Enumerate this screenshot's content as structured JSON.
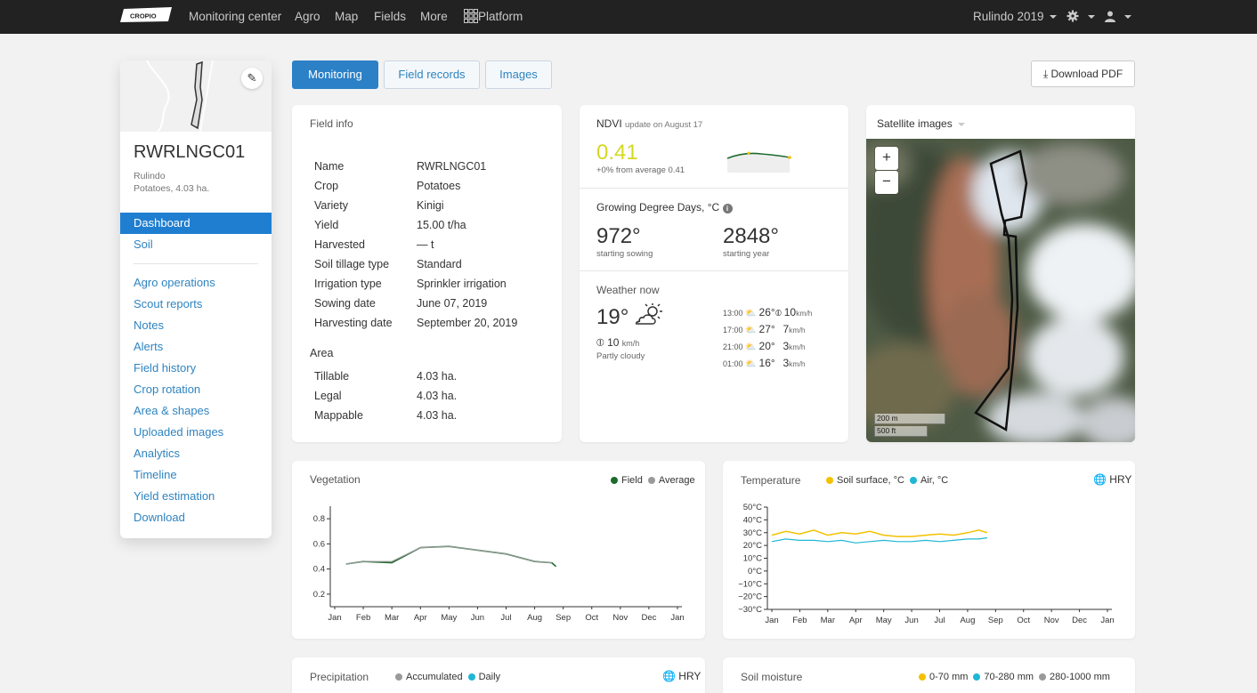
{
  "topbar": {
    "logo_text": "CROPIO",
    "nav": [
      "Monitoring center",
      "Agro",
      "Map",
      "Fields",
      "More",
      "Platform"
    ],
    "season": "Rulindo 2019",
    "icons": [
      "platform-grid-icon",
      "gear-icon",
      "user-icon"
    ]
  },
  "field": {
    "name": "RWRLNGC01",
    "district": "Rulindo",
    "crop_area": "Potatoes, 4.03 ha."
  },
  "sidebar": {
    "primary": [
      {
        "label": "Dashboard",
        "active": true
      },
      {
        "label": "Soil",
        "active": false
      }
    ],
    "secondary": [
      "Agro operations",
      "Scout reports",
      "Notes",
      "Alerts",
      "Field history",
      "Crop rotation",
      "Area & shapes",
      "Uploaded images",
      "Analytics",
      "Timeline",
      "Yield estimation",
      "Download"
    ]
  },
  "tabs": [
    {
      "label": "Monitoring",
      "active": true
    },
    {
      "label": "Field records",
      "active": false
    },
    {
      "label": "Images",
      "active": false
    }
  ],
  "download_pdf": "Download PDF",
  "field_info": {
    "title": "Field info",
    "rows": [
      {
        "k": "Name",
        "v": "RWRLNGC01"
      },
      {
        "k": "Crop",
        "v": "Potatoes"
      },
      {
        "k": "Variety",
        "v": "Kinigi"
      },
      {
        "k": "Yield",
        "v": "15.00 t/ha"
      },
      {
        "k": "Harvested",
        "v": "— t"
      },
      {
        "k": "Soil tillage type",
        "v": "Standard"
      },
      {
        "k": "Irrigation type",
        "v": "Sprinkler irrigation"
      },
      {
        "k": "Sowing date",
        "v": "June 07, 2019"
      },
      {
        "k": "Harvesting date",
        "v": "September 20, 2019"
      }
    ],
    "area_title": "Area",
    "area_rows": [
      {
        "k": "Tillable",
        "v": "4.03 ha."
      },
      {
        "k": "Legal",
        "v": "4.03 ha."
      },
      {
        "k": "Mappable",
        "v": "4.03 ha."
      }
    ]
  },
  "ndvi": {
    "title": "NDVI",
    "update": "update on August 17",
    "value": "0.41",
    "delta": "+0% from average 0.41"
  },
  "gdd": {
    "title": "Growing Degree Days, °C",
    "sowing_value": "972°",
    "sowing_label": "starting sowing",
    "year_value": "2848°",
    "year_label": "starting year"
  },
  "weather": {
    "title": "Weather now",
    "temp": "19°",
    "wind": "10",
    "wind_unit": "km/h",
    "condition": "Partly cloudy",
    "forecast": [
      {
        "time": "13:00",
        "temp": "26°",
        "wind": "10",
        "unit": "km/h"
      },
      {
        "time": "17:00",
        "temp": "27°",
        "wind": "7",
        "unit": "km/h"
      },
      {
        "time": "21:00",
        "temp": "20°",
        "wind": "3",
        "unit": "km/h"
      },
      {
        "time": "01:00",
        "temp": "16°",
        "wind": "3",
        "unit": "km/h"
      }
    ]
  },
  "satellite": {
    "title": "Satellite images",
    "zoom_in": "+",
    "zoom_out": "−",
    "scale_m": "200 m",
    "scale_ft": "500 ft"
  },
  "vegetation": {
    "title": "Vegetation",
    "legend": [
      {
        "label": "Field",
        "color": "#1e6b2e"
      },
      {
        "label": "Average",
        "color": "#9a9a9a"
      }
    ]
  },
  "temperature": {
    "title": "Temperature",
    "legend": [
      {
        "label": "Soil surface, °C",
        "color": "#f2c200"
      },
      {
        "label": "Air, °C",
        "color": "#1fb7d4"
      }
    ],
    "hry": "HRY"
  },
  "precipitation": {
    "title": "Precipitation",
    "legend": [
      {
        "label": "Accumulated",
        "color": "#9a9a9a"
      },
      {
        "label": "Daily",
        "color": "#1fb7d4"
      }
    ],
    "hry": "HRY"
  },
  "soil_moisture": {
    "title": "Soil moisture",
    "legend": [
      {
        "label": "0-70 mm",
        "color": "#f2c200"
      },
      {
        "label": "70-280 mm",
        "color": "#1fb7d4"
      },
      {
        "label": "280-1000 mm",
        "color": "#9a9a9a"
      }
    ]
  },
  "chart_data": [
    {
      "type": "line",
      "title": "Vegetation",
      "categories": [
        "Jan",
        "Feb",
        "Mar",
        "Apr",
        "May",
        "Jun",
        "Jul",
        "Aug",
        "Sep",
        "Oct",
        "Nov",
        "Dec",
        "Jan"
      ],
      "ylim": [
        0.1,
        0.9
      ],
      "yticks": [
        "0.8",
        "0.6",
        "0.4",
        "0.2"
      ],
      "series": [
        {
          "name": "Field",
          "x": [
            0.4,
            1.0,
            2.0,
            3.0,
            4.0,
            5.0,
            6.0,
            7.0,
            7.6,
            7.75
          ],
          "values": [
            0.44,
            0.46,
            0.45,
            0.57,
            0.58,
            0.55,
            0.52,
            0.46,
            0.45,
            0.42
          ]
        },
        {
          "name": "Average",
          "x": [
            0.4,
            1.0,
            2.0,
            3.0,
            4.0,
            5.0,
            6.0,
            7.0,
            7.6
          ],
          "values": [
            0.44,
            0.46,
            0.46,
            0.57,
            0.58,
            0.55,
            0.52,
            0.46,
            0.45
          ]
        }
      ]
    },
    {
      "type": "line",
      "title": "Temperature",
      "categories": [
        "Jan",
        "Feb",
        "Mar",
        "Apr",
        "May",
        "Jun",
        "Jul",
        "Aug",
        "Sep",
        "Oct",
        "Nov",
        "Dec",
        "Jan"
      ],
      "ylim": [
        -30,
        50
      ],
      "yticks": [
        "50°C",
        "40°C",
        "30°C",
        "20°C",
        "10°C",
        "0°C",
        "−10°C",
        "−20°C",
        "−30°C"
      ],
      "series": [
        {
          "name": "Soil surface, °C",
          "x": [
            0,
            0.5,
            1,
            1.5,
            2,
            2.5,
            3,
            3.5,
            4,
            4.5,
            5,
            5.5,
            6,
            6.5,
            7,
            7.4,
            7.7
          ],
          "values": [
            28,
            31,
            29,
            32,
            28,
            30,
            29,
            31,
            28,
            27,
            27,
            28,
            29,
            28,
            30,
            32,
            30
          ]
        },
        {
          "name": "Air, °C",
          "x": [
            0,
            0.5,
            1,
            1.5,
            2,
            2.5,
            3,
            3.5,
            4,
            4.5,
            5,
            5.5,
            6,
            6.5,
            7,
            7.4,
            7.7
          ],
          "values": [
            23,
            25,
            24,
            24,
            23,
            24,
            22,
            23,
            24,
            23,
            23,
            24,
            23,
            24,
            25,
            25,
            26
          ]
        }
      ]
    }
  ]
}
